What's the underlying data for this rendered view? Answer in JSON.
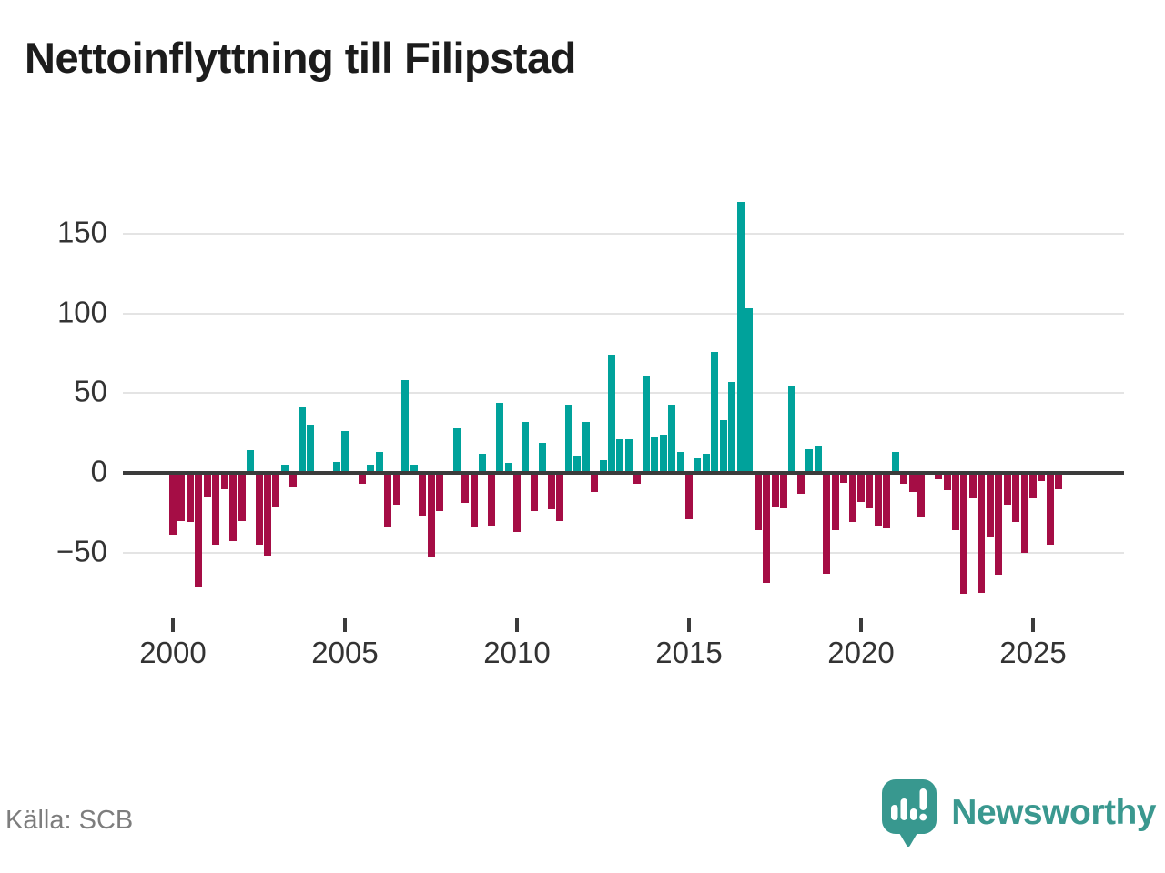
{
  "title": "Nettoinflyttning till Filipstad",
  "source": {
    "label": "Källa: SCB"
  },
  "branding": {
    "name": "Newsworthy",
    "logo_icon": "speech-bubble-bar-chart-exclamation"
  },
  "colors": {
    "positive": "#00a29b",
    "negative": "#a50d45",
    "axis": "#3b3b3b",
    "grid": "#e4e4e4",
    "tick_text": "#333333",
    "source_text": "#7d7d7d",
    "brand": "#3a988f"
  },
  "chart_data": {
    "type": "bar",
    "title": "Nettoinflyttning till Filipstad",
    "frequency": "quarterly",
    "x_start": "2000 Q1",
    "x_end": "2025 Q4",
    "x_tick_years": [
      2000,
      2005,
      2010,
      2015,
      2020,
      2025
    ],
    "y_ticks": [
      150,
      100,
      50,
      0,
      -50
    ],
    "ylim": [
      -90,
      185
    ],
    "grid": "horizontal",
    "legend": "none",
    "series": [
      {
        "name": "Nettoinflyttning",
        "values": [
          -39,
          -30,
          -31,
          -72,
          -15,
          -45,
          -10,
          -43,
          -30,
          14,
          -45,
          -52,
          -21,
          5,
          -9,
          41,
          30,
          0,
          0,
          7,
          26,
          0,
          -7,
          5,
          13,
          -34,
          -20,
          58,
          5,
          -27,
          -53,
          -24,
          0,
          28,
          -19,
          -34,
          12,
          -33,
          44,
          6,
          -37,
          32,
          -24,
          19,
          -23,
          -30,
          43,
          11,
          32,
          -12,
          8,
          74,
          21,
          21,
          -7,
          61,
          22,
          24,
          43,
          13,
          -29,
          9,
          12,
          76,
          33,
          57,
          170,
          103,
          -36,
          -69,
          -21,
          -22,
          54,
          -13,
          15,
          17,
          -63,
          -36,
          -6,
          -31,
          -18,
          -22,
          -33,
          -35,
          13,
          -7,
          -12,
          -28,
          0,
          -4,
          -11,
          -36,
          -76,
          -16,
          -75,
          -40,
          -64,
          -20,
          -31,
          -50,
          -16,
          -5,
          -45,
          -10
        ]
      }
    ]
  }
}
